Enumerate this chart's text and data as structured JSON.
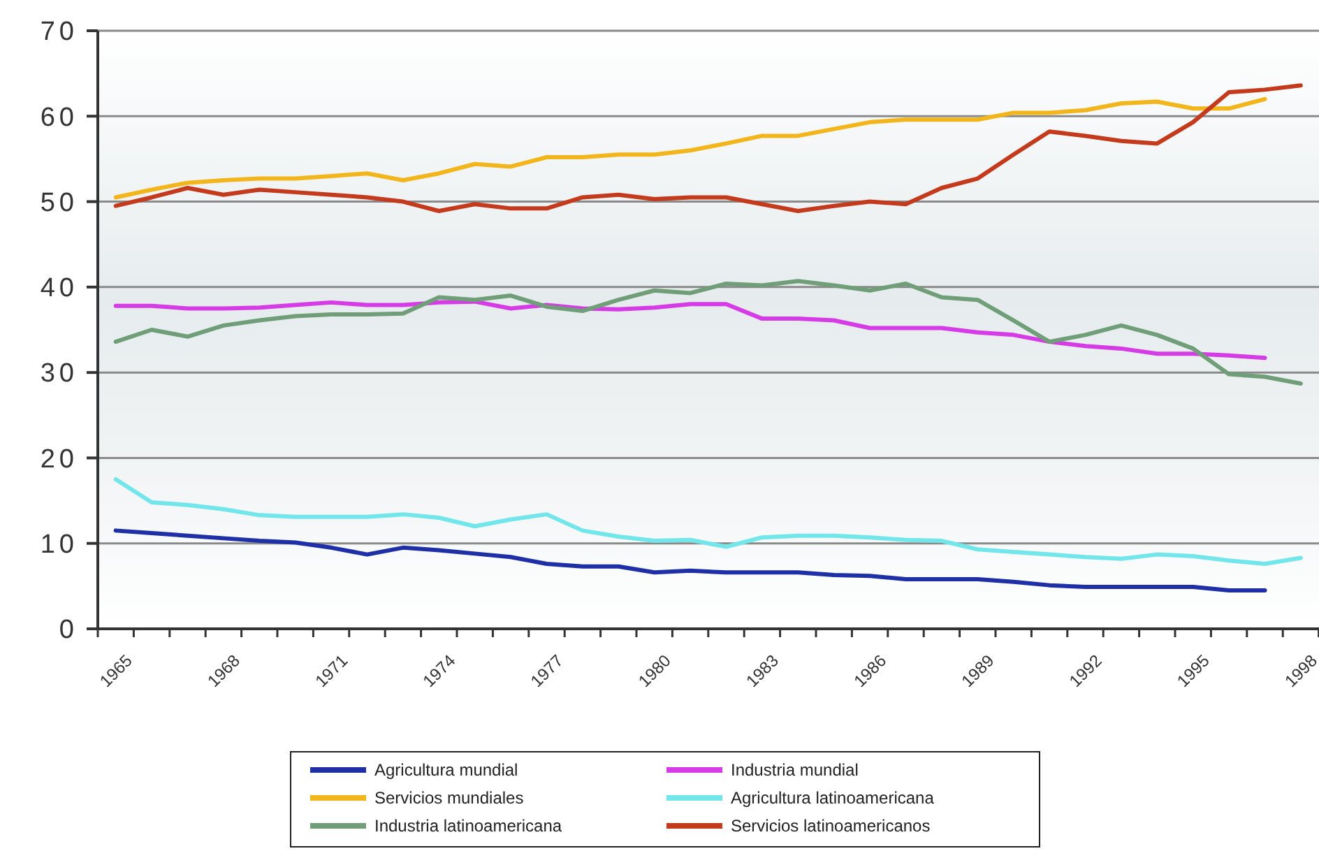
{
  "chart_data": {
    "type": "line",
    "categories": [
      "1965",
      null,
      null,
      "1968",
      null,
      null,
      "1971",
      null,
      null,
      "1974",
      null,
      null,
      "1977",
      null,
      null,
      "1980",
      null,
      null,
      "1983",
      null,
      null,
      "1986",
      null,
      null,
      "1989",
      null,
      null,
      "1992",
      null,
      null,
      "1995",
      null,
      null,
      "1998"
    ],
    "series": [
      {
        "name": "Agricultura mundial",
        "color": "#1f2fa6",
        "values": [
          11.5,
          11.2,
          10.9,
          10.6,
          10.3,
          10.1,
          9.5,
          8.7,
          9.5,
          9.2,
          8.8,
          8.4,
          7.6,
          7.3,
          7.3,
          6.6,
          6.8,
          6.6,
          6.6,
          6.6,
          6.3,
          6.2,
          5.8,
          5.8,
          5.8,
          5.5,
          5.1,
          4.9,
          4.9,
          4.9,
          4.9,
          4.5,
          4.5,
          null
        ]
      },
      {
        "name": "Industria mundial",
        "color": "#d63ce6",
        "values": [
          37.8,
          37.8,
          37.5,
          37.5,
          37.6,
          37.9,
          38.2,
          37.9,
          37.9,
          38.2,
          38.3,
          37.5,
          37.9,
          37.5,
          37.4,
          37.6,
          38,
          38,
          36.3,
          36.3,
          36.1,
          35.2,
          35.2,
          35.2,
          34.7,
          34.4,
          33.6,
          33.1,
          32.8,
          32.2,
          32.2,
          32,
          31.7,
          null
        ]
      },
      {
        "name": "Servicios mundiales",
        "color": "#f2b61c",
        "values": [
          50.5,
          51.4,
          52.2,
          52.5,
          52.7,
          52.7,
          53,
          53.3,
          52.5,
          53.3,
          54.4,
          54.1,
          55.2,
          55.2,
          55.5,
          55.5,
          56,
          56.8,
          57.7,
          57.7,
          58.5,
          59.3,
          59.6,
          59.6,
          59.6,
          60.4,
          60.4,
          60.7,
          61.5,
          61.7,
          60.9,
          60.9,
          62,
          null
        ]
      },
      {
        "name": "Agricultura latinoamericana",
        "color": "#72e6ea",
        "values": [
          17.5,
          14.8,
          14.5,
          14,
          13.3,
          13.1,
          13.1,
          13.1,
          13.4,
          13,
          12,
          12.8,
          13.4,
          11.5,
          10.8,
          10.3,
          10.4,
          9.6,
          10.7,
          10.9,
          10.9,
          10.7,
          10.4,
          10.3,
          9.3,
          9,
          8.7,
          8.4,
          8.2,
          8.7,
          8.5,
          8,
          7.6,
          8.3
        ]
      },
      {
        "name": "Industria latinoamericana",
        "color": "#6f9e78",
        "values": [
          33.6,
          35,
          34.2,
          35.5,
          36.1,
          36.6,
          36.8,
          36.8,
          36.9,
          38.8,
          38.5,
          39,
          37.7,
          37.2,
          38.5,
          39.6,
          39.3,
          40.4,
          40.2,
          40.7,
          40.2,
          39.6,
          40.4,
          38.8,
          38.5,
          36.1,
          33.6,
          34.4,
          35.5,
          34.4,
          32.8,
          29.8,
          29.5,
          28.7
        ]
      },
      {
        "name": "Servicios latinoamericanos",
        "color": "#c43a1c",
        "values": [
          49.5,
          50.5,
          51.6,
          50.8,
          51.4,
          51.1,
          50.8,
          50.5,
          50,
          48.9,
          49.7,
          49.2,
          49.2,
          50.5,
          50.8,
          50.3,
          50.5,
          50.5,
          49.7,
          48.9,
          49.5,
          50,
          49.7,
          51.6,
          52.7,
          55.5,
          58.2,
          57.7,
          57.1,
          56.8,
          59.3,
          62.8,
          63.1,
          63.6
        ]
      }
    ],
    "ylim": [
      0,
      70
    ],
    "yticks": [
      0,
      10,
      20,
      30,
      40,
      50,
      60,
      70
    ],
    "grid": "y",
    "legend": "bottom",
    "line_style": "solid"
  }
}
